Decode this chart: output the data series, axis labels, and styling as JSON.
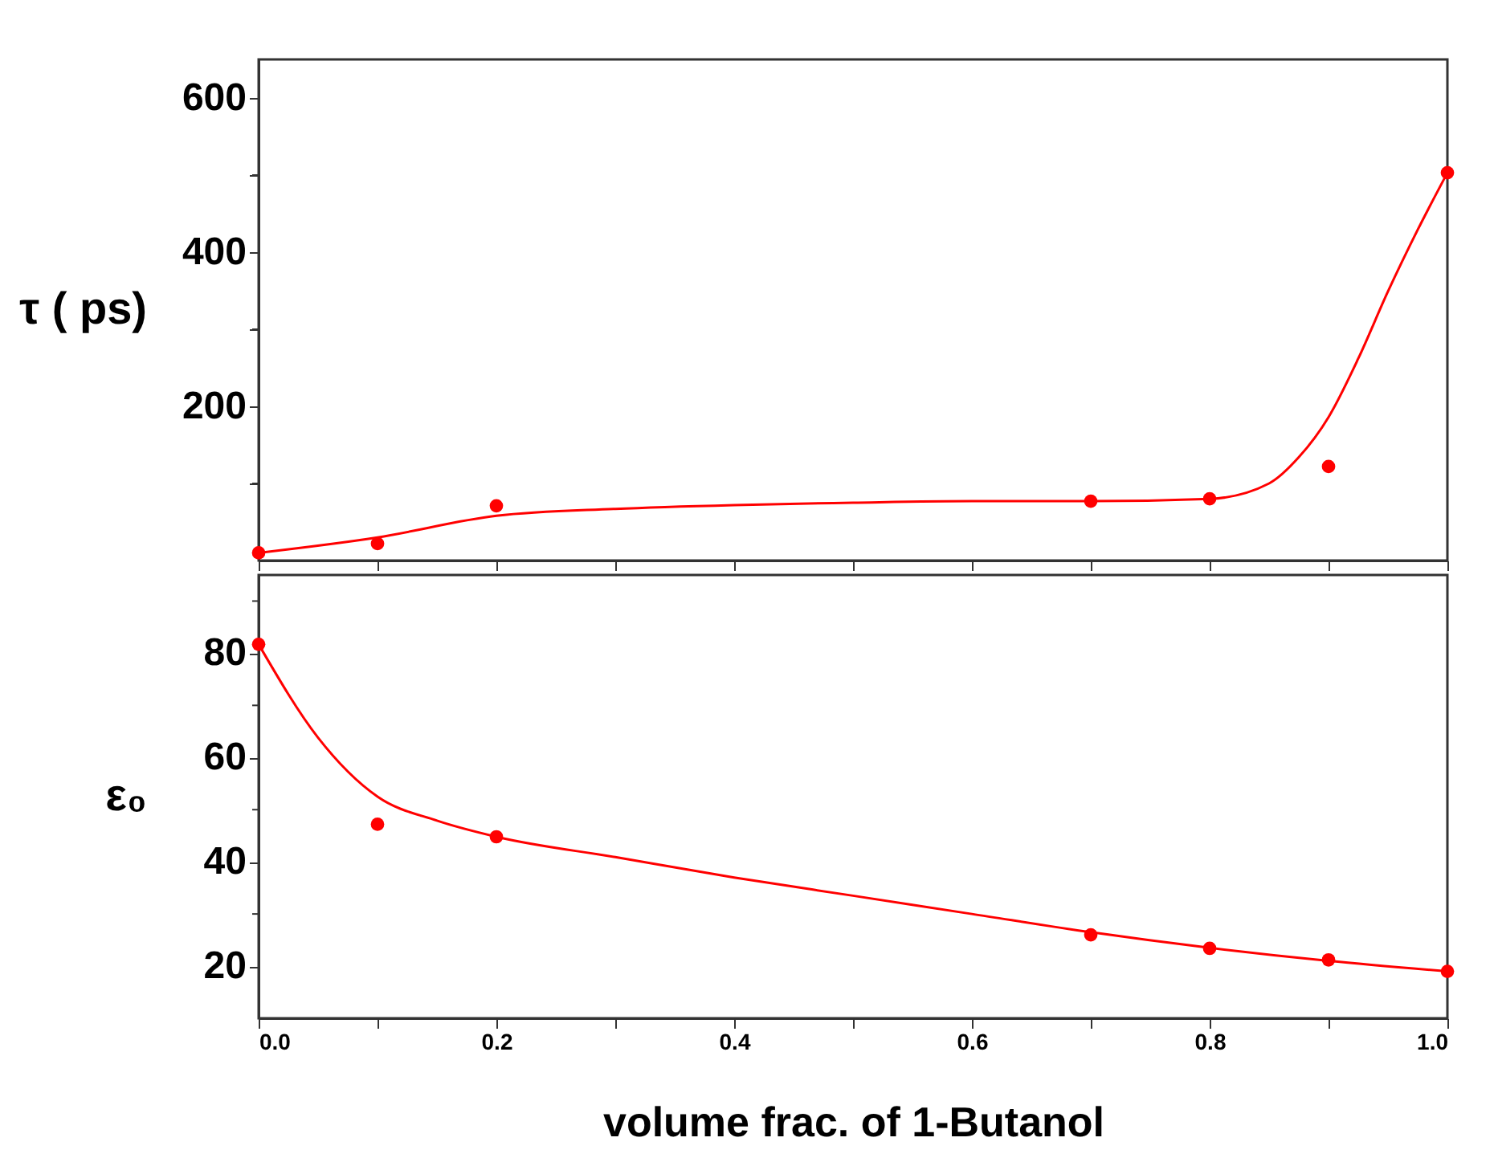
{
  "chart_data": [
    {
      "type": "scatter",
      "ylabel": "τ ( ps)",
      "xlim": [
        0,
        1
      ],
      "ylim": [
        0,
        650
      ],
      "tick_labels": "y",
      "grid": false,
      "marker": "circle",
      "xticks": [
        {
          "value": 0,
          "label": null
        },
        {
          "value": 0.1,
          "label": null
        },
        {
          "value": 0.2,
          "label": null
        },
        {
          "value": 0.3,
          "label": null
        },
        {
          "value": 0.4,
          "label": null
        },
        {
          "value": 0.5,
          "label": null
        },
        {
          "value": 0.6,
          "label": null
        },
        {
          "value": 0.7,
          "label": null
        },
        {
          "value": 0.8,
          "label": null
        },
        {
          "value": 0.9,
          "label": null
        },
        {
          "value": 1,
          "label": null
        }
      ],
      "yticks": [
        {
          "value": 100,
          "label": null
        },
        200,
        {
          "value": 300,
          "label": null
        },
        400,
        {
          "value": 500,
          "label": null
        },
        600
      ],
      "series": [
        {
          "type": "scatter",
          "color": "#ff0000",
          "x": [
            0,
            0.1,
            0.2,
            0.7,
            0.8,
            0.9,
            1.0
          ],
          "values": [
            10,
            22,
            71,
            77,
            80,
            122,
            503
          ]
        },
        {
          "type": "line",
          "color": "#ff0000",
          "line_style": "solid",
          "marker": "none",
          "x": [
            0,
            0.1,
            0.2,
            0.3,
            0.4,
            0.5,
            0.6,
            0.7,
            0.8,
            0.85,
            0.875,
            0.9,
            0.925,
            0.95,
            0.975,
            1.0
          ],
          "values": [
            10,
            30,
            58,
            67,
            72,
            75,
            77,
            77,
            80,
            100,
            134,
            186,
            262,
            349,
            429,
            503
          ]
        }
      ]
    },
    {
      "type": "scatter",
      "ylabel": "ε₀",
      "xlabel": "volume frac. of 1-Butanol",
      "xlim": [
        0,
        1
      ],
      "ylim": [
        10,
        95
      ],
      "grid": false,
      "marker": "circle",
      "xticks": [
        {
          "value": 0,
          "label": "0.0"
        },
        {
          "value": 0.1,
          "label": null
        },
        0.2,
        {
          "value": 0.3,
          "label": null
        },
        0.4,
        {
          "value": 0.5,
          "label": null
        },
        0.6,
        {
          "value": 0.7,
          "label": null
        },
        0.8,
        {
          "value": 0.9,
          "label": null
        },
        {
          "value": 1,
          "label": "1.0"
        }
      ],
      "yticks": [
        20,
        {
          "value": 30,
          "label": null
        },
        40,
        {
          "value": 50,
          "label": null
        },
        60,
        {
          "value": 70,
          "label": null
        },
        80,
        {
          "value": 90,
          "label": null
        }
      ],
      "series": [
        {
          "type": "scatter",
          "color": "#ff0000",
          "x": [
            0,
            0.1,
            0.2,
            0.7,
            0.8,
            0.9,
            1.0
          ],
          "values": [
            81.7,
            47.2,
            44.8,
            26,
            23.4,
            21.2,
            19
          ]
        },
        {
          "type": "line",
          "color": "#ff0000",
          "line_style": "solid",
          "marker": "none",
          "x": [
            0,
            0.05,
            0.1,
            0.15,
            0.2,
            0.3,
            0.4,
            0.5,
            0.6,
            0.7,
            0.8,
            0.9,
            1.0
          ],
          "values": [
            81.7,
            63.8,
            52.5,
            47.9,
            44.8,
            40.9,
            37,
            33.5,
            30,
            26.5,
            23.5,
            21,
            19
          ]
        }
      ]
    }
  ]
}
